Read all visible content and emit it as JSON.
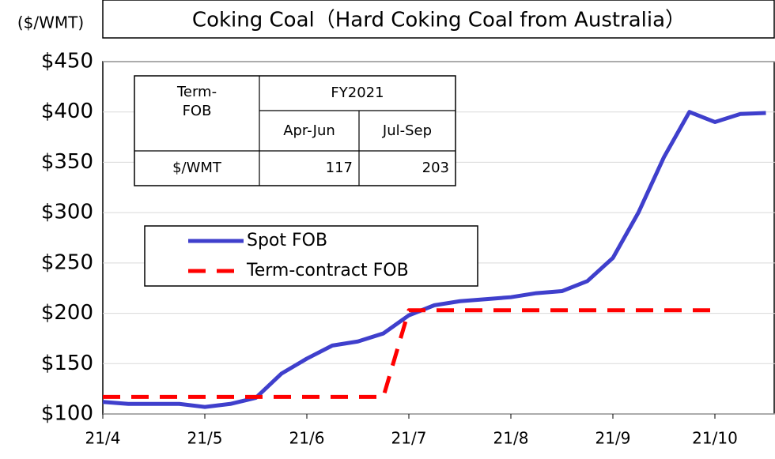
{
  "chart_data": {
    "type": "line",
    "title": "Coking Coal（Hard Coking Coal from Australia）",
    "unit_label": "($/WMT)",
    "categories": [
      "21/4",
      null,
      null,
      null,
      "21/5",
      null,
      null,
      null,
      "21/6",
      null,
      null,
      null,
      "21/7",
      null,
      null,
      null,
      "21/8",
      null,
      null,
      null,
      "21/9",
      null,
      null,
      null,
      "21/10",
      null,
      null
    ],
    "series": [
      {
        "name": "Spot FOB",
        "color": "#3f3fcc",
        "style": "solid",
        "values": [
          112,
          110,
          110,
          110,
          107,
          110,
          116,
          140,
          155,
          168,
          172,
          180,
          198,
          208,
          212,
          214,
          216,
          220,
          222,
          232,
          255,
          300,
          355,
          400,
          390,
          398,
          399
        ]
      },
      {
        "name": "Term-contract FOB",
        "color": "#ff0000",
        "style": "dashed",
        "values": [
          117,
          117,
          117,
          117,
          117,
          117,
          117,
          117,
          117,
          117,
          117,
          117,
          203,
          203,
          203,
          203,
          203,
          203,
          203,
          203,
          203,
          203,
          203,
          203,
          203,
          null,
          null
        ]
      }
    ],
    "ylim": [
      100,
      450
    ],
    "yticks": [
      {
        "value": 100,
        "label": "$100"
      },
      {
        "value": 150,
        "label": "$150"
      },
      {
        "value": 200,
        "label": "$200"
      },
      {
        "value": 250,
        "label": "$250"
      },
      {
        "value": 300,
        "label": "$300"
      },
      {
        "value": 350,
        "label": "$350"
      },
      {
        "value": 400,
        "label": "$400"
      },
      {
        "value": 450,
        "label": "$450"
      }
    ],
    "grid": true,
    "inset_table": {
      "row_header": "Term-contract FOB",
      "group": "FY2021",
      "columns": [
        "Apr-Jun",
        "Jul-Sep"
      ],
      "row_label": "$/WMT",
      "values": [
        117,
        203
      ]
    }
  }
}
